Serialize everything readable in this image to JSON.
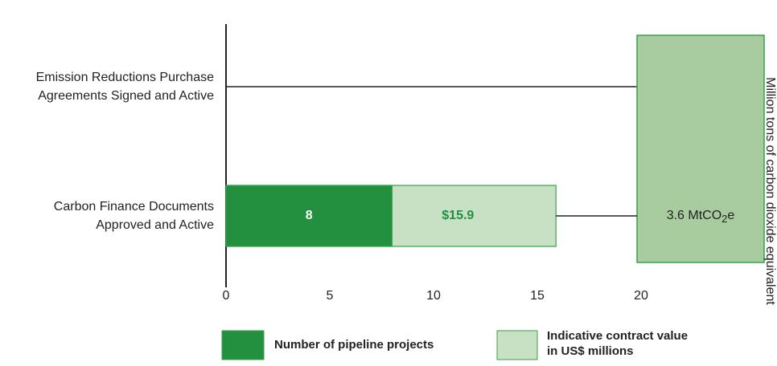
{
  "chart_data": {
    "type": "bar",
    "orientation": "horizontal",
    "overlap": true,
    "categories": [
      [
        "Emission Reductions Purchase",
        "Agreements Signed and Active"
      ],
      [
        "Carbon Finance Documents",
        "Approved and Active"
      ]
    ],
    "series": [
      {
        "name": "Number of pipeline projects",
        "color": "#22903f",
        "values": [
          null,
          8
        ]
      },
      {
        "name": "Indicative contract value in US$ millions",
        "color": "#c8e0c4",
        "values": [
          null,
          15.9
        ],
        "value_labels": [
          null,
          "$15.9"
        ]
      }
    ],
    "xlim": [
      0,
      25
    ],
    "xticks": [
      0,
      5,
      10,
      15,
      20
    ],
    "annotation": {
      "parts": [
        "3.6 MtCO",
        "2",
        "e"
      ],
      "color": "#a8cba0"
    },
    "y2_label": "Million tons of carbon dioxide equivalent"
  }
}
